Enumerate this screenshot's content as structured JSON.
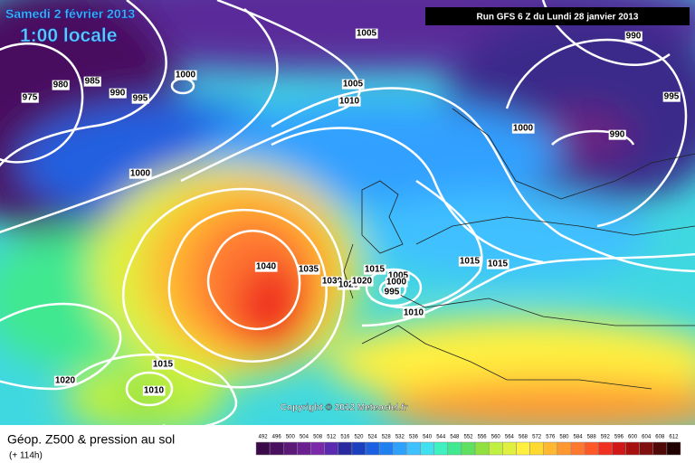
{
  "header": {
    "date": "Samedi 2 février 2013",
    "time": "1:00 locale",
    "run": "Run GFS 6 Z du Lundi 28 janvier 2013"
  },
  "isobar_labels": [
    "1005",
    "1000",
    "990",
    "980",
    "985",
    "975",
    "990",
    "995",
    "1005",
    "1010",
    "995",
    "1000",
    "990",
    "1000",
    "1040",
    "1035",
    "1030",
    "1025",
    "1020",
    "1015",
    "1005",
    "1000",
    "995",
    "1010",
    "1015",
    "1015",
    "1015",
    "1020",
    "1010"
  ],
  "copyright": "Copyright © 2012 Meteociel.fr",
  "legend": {
    "title": "Géop. Z500 & pression au sol",
    "lead": "(+ 114h)",
    "levels": [
      492,
      496,
      500,
      504,
      508,
      512,
      516,
      520,
      524,
      528,
      532,
      536,
      540,
      544,
      548,
      552,
      556,
      560,
      564,
      568,
      572,
      576,
      580,
      584,
      588,
      592,
      596,
      600,
      604,
      608,
      612
    ],
    "colors": [
      "#3a0a4a",
      "#4a0f5f",
      "#5c1a78",
      "#6a2090",
      "#7a2aa8",
      "#5a2ab0",
      "#2a2aa0",
      "#1a40c0",
      "#1a60e0",
      "#2080f0",
      "#30a0ff",
      "#40c0ff",
      "#40e0f0",
      "#40f0c0",
      "#40e890",
      "#60e060",
      "#90e040",
      "#c0f040",
      "#e0f040",
      "#fff040",
      "#ffd830",
      "#ffb830",
      "#ff9830",
      "#ff7830",
      "#ff5828",
      "#f03020",
      "#d01818",
      "#a81010",
      "#801010",
      "#500808",
      "#200000"
    ]
  }
}
